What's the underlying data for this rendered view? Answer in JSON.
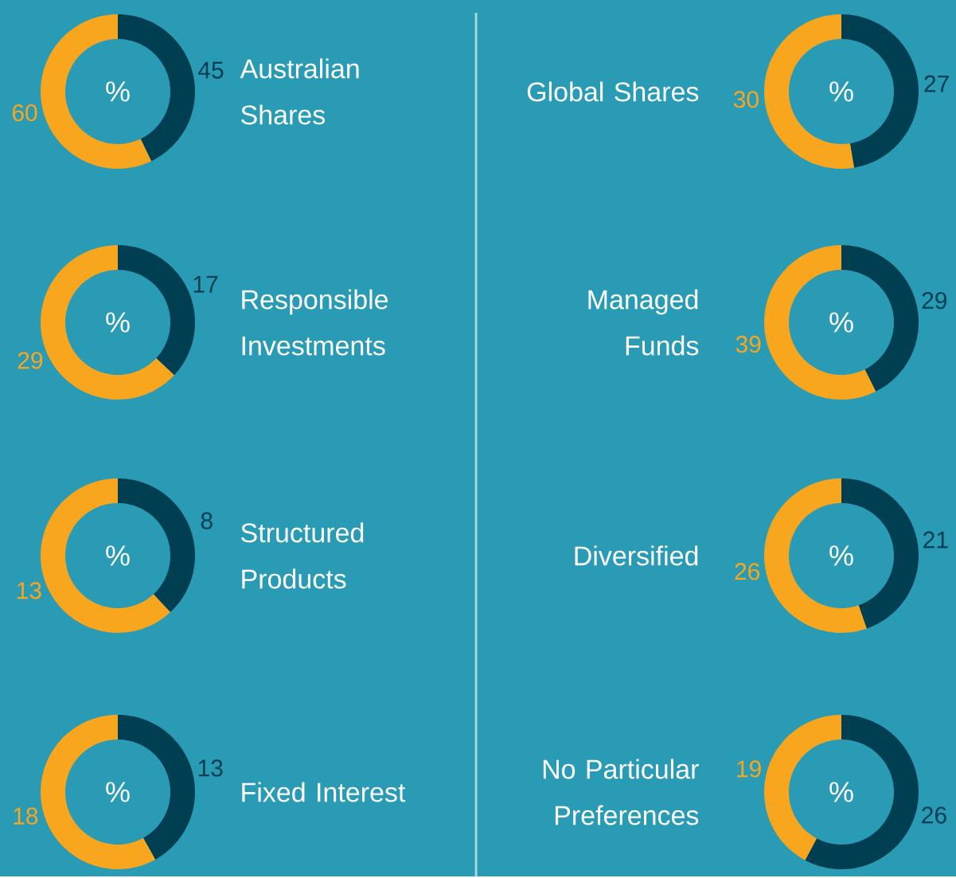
{
  "chart_data": [
    {
      "type": "donut",
      "title": "Australian Shares",
      "categories": [
        null,
        null
      ],
      "values": [
        45,
        60
      ],
      "colors": [
        "#003f51",
        "#f9a61f"
      ],
      "data_labels": true,
      "annotations": [
        "%"
      ]
    },
    {
      "type": "donut",
      "title": "Global Shares",
      "categories": [
        null,
        null
      ],
      "values": [
        27,
        30
      ],
      "colors": [
        "#003f51",
        "#f9a61f"
      ],
      "data_labels": true,
      "annotations": [
        "%"
      ]
    },
    {
      "type": "donut",
      "title": "Responsible Investments",
      "categories": [
        null,
        null
      ],
      "values": [
        17,
        29
      ],
      "colors": [
        "#003f51",
        "#f9a61f"
      ],
      "data_labels": true,
      "annotations": [
        "%"
      ]
    },
    {
      "type": "donut",
      "title": "Managed Funds",
      "categories": [
        null,
        null
      ],
      "values": [
        29,
        39
      ],
      "colors": [
        "#003f51",
        "#f9a61f"
      ],
      "data_labels": true,
      "annotations": [
        "%"
      ]
    },
    {
      "type": "donut",
      "title": "Structured Products",
      "categories": [
        null,
        null
      ],
      "values": [
        8,
        13
      ],
      "colors": [
        "#003f51",
        "#f9a61f"
      ],
      "data_labels": true,
      "annotations": [
        "%"
      ]
    },
    {
      "type": "donut",
      "title": "Diversified",
      "categories": [
        null,
        null
      ],
      "values": [
        21,
        26
      ],
      "colors": [
        "#003f51",
        "#f9a61f"
      ],
      "data_labels": true,
      "annotations": [
        "%"
      ]
    },
    {
      "type": "donut",
      "title": "Fixed Interest",
      "categories": [
        null,
        null
      ],
      "values": [
        13,
        18
      ],
      "colors": [
        "#003f51",
        "#f9a61f"
      ],
      "data_labels": true,
      "annotations": [
        "%"
      ]
    },
    {
      "type": "donut",
      "title": "No Particular Preferences",
      "categories": [
        null,
        null
      ],
      "values": [
        26,
        19
      ],
      "colors": [
        "#003f51",
        "#f9a61f"
      ],
      "data_labels": true,
      "annotations": [
        "%"
      ]
    }
  ]
}
